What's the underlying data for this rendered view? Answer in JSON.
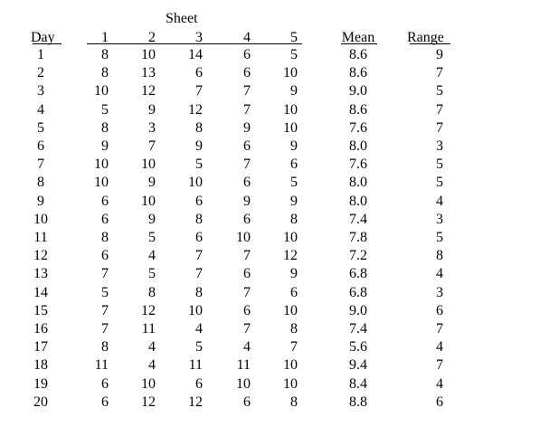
{
  "header": {
    "group_label": "Sheet",
    "columns": [
      "Day",
      "1",
      "2",
      "3",
      "4",
      "5",
      "Mean",
      "Range"
    ]
  },
  "rows": [
    {
      "day": "1",
      "s": [
        "8",
        "10",
        "14",
        "6",
        "5"
      ],
      "mean": "8.6",
      "range": "9"
    },
    {
      "day": "2",
      "s": [
        "8",
        "13",
        "6",
        "6",
        "10"
      ],
      "mean": "8.6",
      "range": "7"
    },
    {
      "day": "3",
      "s": [
        "10",
        "12",
        "7",
        "7",
        "9"
      ],
      "mean": "9.0",
      "range": "5"
    },
    {
      "day": "4",
      "s": [
        "5",
        "9",
        "12",
        "7",
        "10"
      ],
      "mean": "8.6",
      "range": "7"
    },
    {
      "day": "5",
      "s": [
        "8",
        "3",
        "8",
        "9",
        "10"
      ],
      "mean": "7.6",
      "range": "7"
    },
    {
      "day": "6",
      "s": [
        "9",
        "7",
        "9",
        "6",
        "9"
      ],
      "mean": "8.0",
      "range": "3"
    },
    {
      "day": "7",
      "s": [
        "10",
        "10",
        "5",
        "7",
        "6"
      ],
      "mean": "7.6",
      "range": "5"
    },
    {
      "day": "8",
      "s": [
        "10",
        "9",
        "10",
        "6",
        "5"
      ],
      "mean": "8.0",
      "range": "5"
    },
    {
      "day": "9",
      "s": [
        "6",
        "10",
        "6",
        "9",
        "9"
      ],
      "mean": "8.0",
      "range": "4"
    },
    {
      "day": "10",
      "s": [
        "6",
        "9",
        "8",
        "6",
        "8"
      ],
      "mean": "7.4",
      "range": "3"
    },
    {
      "day": "11",
      "s": [
        "8",
        "5",
        "6",
        "10",
        "10"
      ],
      "mean": "7.8",
      "range": "5"
    },
    {
      "day": "12",
      "s": [
        "6",
        "4",
        "7",
        "7",
        "12"
      ],
      "mean": "7.2",
      "range": "8"
    },
    {
      "day": "13",
      "s": [
        "7",
        "5",
        "7",
        "6",
        "9"
      ],
      "mean": "6.8",
      "range": "4"
    },
    {
      "day": "14",
      "s": [
        "5",
        "8",
        "8",
        "7",
        "6"
      ],
      "mean": "6.8",
      "range": "3"
    },
    {
      "day": "15",
      "s": [
        "7",
        "12",
        "10",
        "6",
        "10"
      ],
      "mean": "9.0",
      "range": "6"
    },
    {
      "day": "16",
      "s": [
        "7",
        "11",
        "4",
        "7",
        "8"
      ],
      "mean": "7.4",
      "range": "7"
    },
    {
      "day": "17",
      "s": [
        "8",
        "4",
        "5",
        "4",
        "7"
      ],
      "mean": "5.6",
      "range": "4"
    },
    {
      "day": "18",
      "s": [
        "11",
        "4",
        "11",
        "11",
        "10"
      ],
      "mean": "9.4",
      "range": "7"
    },
    {
      "day": "19",
      "s": [
        "6",
        "10",
        "6",
        "10",
        "10"
      ],
      "mean": "8.4",
      "range": "4"
    },
    {
      "day": "20",
      "s": [
        "6",
        "12",
        "12",
        "6",
        "8"
      ],
      "mean": "8.8",
      "range": "6"
    }
  ]
}
